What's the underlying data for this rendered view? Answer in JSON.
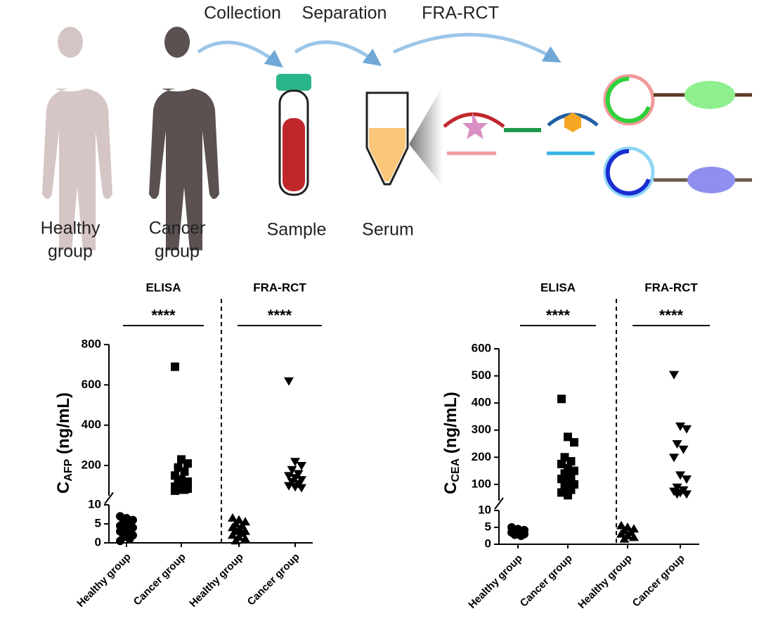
{
  "diagram": {
    "steps": [
      "Collection",
      "Separation",
      "FRA-RCT"
    ],
    "healthy": [
      "Healthy",
      "group"
    ],
    "cancer": [
      "Cancer",
      "group"
    ],
    "sample": "Sample",
    "serum": "Serum"
  },
  "chart_data": [
    {
      "type": "scatter",
      "ylabel_parts": [
        "C",
        "AFP",
        " (ng/mL)"
      ],
      "categories": [
        "Healthy group",
        "Cancer group",
        "Healthy group",
        "Cancer group"
      ],
      "groups": [
        {
          "label": "ELISA",
          "significance": "****"
        },
        {
          "label": "FRA-RCT",
          "significance": "****"
        }
      ],
      "segments": [
        {
          "ylim": [
            0,
            10
          ],
          "yticks": [
            0,
            5,
            10
          ]
        },
        {
          "ylim": [
            50,
            800
          ],
          "yticks": [
            200,
            400,
            600,
            800
          ]
        }
      ],
      "color": "#000000",
      "series": [
        {
          "marker": "circle",
          "values": [
            7,
            6.5,
            6,
            5.5,
            5,
            4.5,
            4,
            4,
            3.5,
            3,
            3,
            2.5,
            2,
            1.5,
            1,
            0.5
          ]
        },
        {
          "marker": "square",
          "values": [
            690,
            230,
            210,
            190,
            170,
            150,
            130,
            120,
            110,
            100,
            95,
            90,
            85,
            80,
            80,
            75
          ]
        },
        {
          "marker": "triangle-up",
          "values": [
            6.5,
            6,
            5.5,
            5,
            4.5,
            4,
            3.5,
            3,
            3,
            2.5,
            2,
            1.5,
            1,
            0.5
          ]
        },
        {
          "marker": "triangle-down",
          "values": [
            620,
            220,
            200,
            180,
            160,
            150,
            140,
            130,
            120,
            110,
            100,
            95,
            90
          ]
        }
      ]
    },
    {
      "type": "scatter",
      "ylabel_parts": [
        "C",
        "CEA",
        " (ng/mL)"
      ],
      "categories": [
        "Healthy group",
        "Cancer group",
        "Healthy group",
        "Cancer group"
      ],
      "groups": [
        {
          "label": "ELISA",
          "significance": "****"
        },
        {
          "label": "FRA-RCT",
          "significance": "****"
        }
      ],
      "segments": [
        {
          "ylim": [
            0,
            10
          ],
          "yticks": [
            0,
            5,
            10
          ]
        },
        {
          "ylim": [
            40,
            600
          ],
          "yticks": [
            100,
            200,
            300,
            400,
            500,
            600
          ]
        }
      ],
      "color": "#000000",
      "series": [
        {
          "marker": "circle",
          "values": [
            5,
            4.5,
            4.2,
            4,
            3.8,
            3.5,
            3.3,
            3,
            2.8,
            2.5
          ]
        },
        {
          "marker": "square",
          "values": [
            415,
            275,
            255,
            200,
            185,
            175,
            160,
            150,
            140,
            130,
            120,
            110,
            100,
            90,
            80,
            70,
            60
          ]
        },
        {
          "marker": "triangle-up",
          "values": [
            5.5,
            5,
            4.5,
            4,
            3.5,
            3,
            2.5,
            2,
            1.5
          ]
        },
        {
          "marker": "triangle-down",
          "values": [
            505,
            315,
            305,
            250,
            230,
            200,
            135,
            120,
            90,
            80,
            75,
            70,
            65,
            65
          ]
        }
      ]
    }
  ]
}
